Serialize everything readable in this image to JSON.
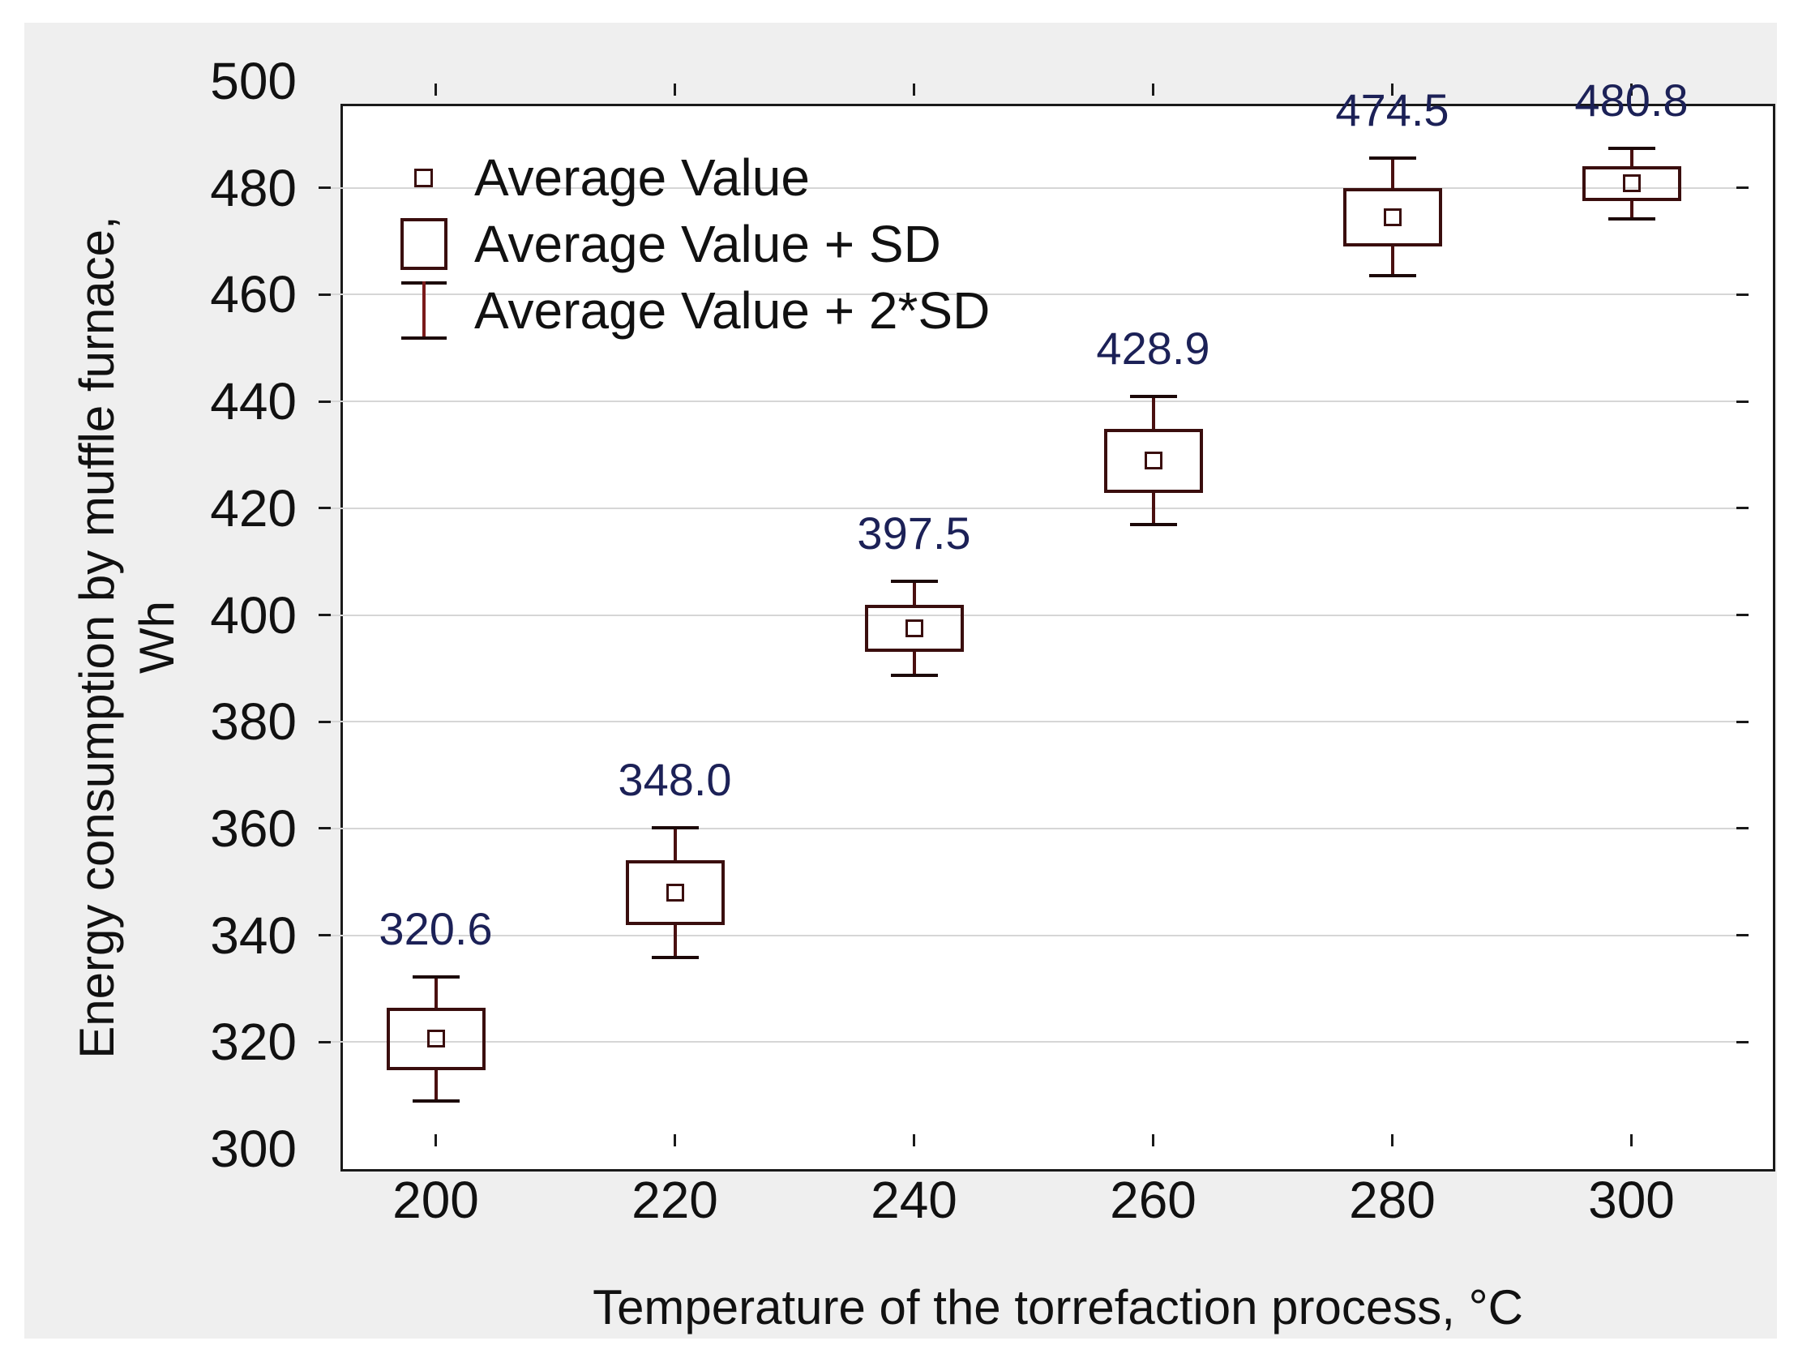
{
  "chart_data": {
    "type": "box",
    "xlabel": "Temperature of the torrefaction process, °C",
    "ylabel_line1": "Energy consumption by muffle furnace,",
    "ylabel_line2": "Wh",
    "x": [
      200,
      220,
      240,
      260,
      280,
      300
    ],
    "series": [
      {
        "name": "Average Value",
        "values": [
          320.6,
          348.0,
          397.5,
          428.9,
          474.5,
          480.8
        ]
      },
      {
        "name": "SD",
        "values": [
          5.8,
          6.1,
          4.4,
          6.0,
          5.5,
          3.3
        ]
      }
    ],
    "point_labels": [
      "320.6",
      "348.0",
      "397.5",
      "428.9",
      "474.5",
      "480.8"
    ],
    "xlim": [
      190,
      310
    ],
    "ylim": [
      300,
      500
    ],
    "xticks": [
      200,
      220,
      240,
      260,
      280,
      300
    ],
    "yticks": [
      300,
      320,
      340,
      360,
      380,
      400,
      420,
      440,
      460,
      480,
      500
    ],
    "grid": "horizontal-only",
    "legend_position": "top-left-inside",
    "legend": [
      {
        "label": "Average Value",
        "symbol": "small-open-square"
      },
      {
        "label": "Average Value + SD",
        "symbol": "open-box"
      },
      {
        "label": "Average Value + 2*SD",
        "symbol": "whisker"
      }
    ],
    "colors": {
      "canvas_bg": "#efefef",
      "plot_bg": "#ffffff",
      "plot_border": "#1a1a1a",
      "grid": "#d6d6d6",
      "axis_text": "#111111",
      "box_stroke": "#3a0e0e",
      "whisker_line": "#4a1010",
      "whisker_cap": "#1c0808",
      "marker_stroke": "#3a0e0e",
      "value_label": "#1c2157",
      "legend_whisker_line": "#7a1a1a"
    }
  }
}
